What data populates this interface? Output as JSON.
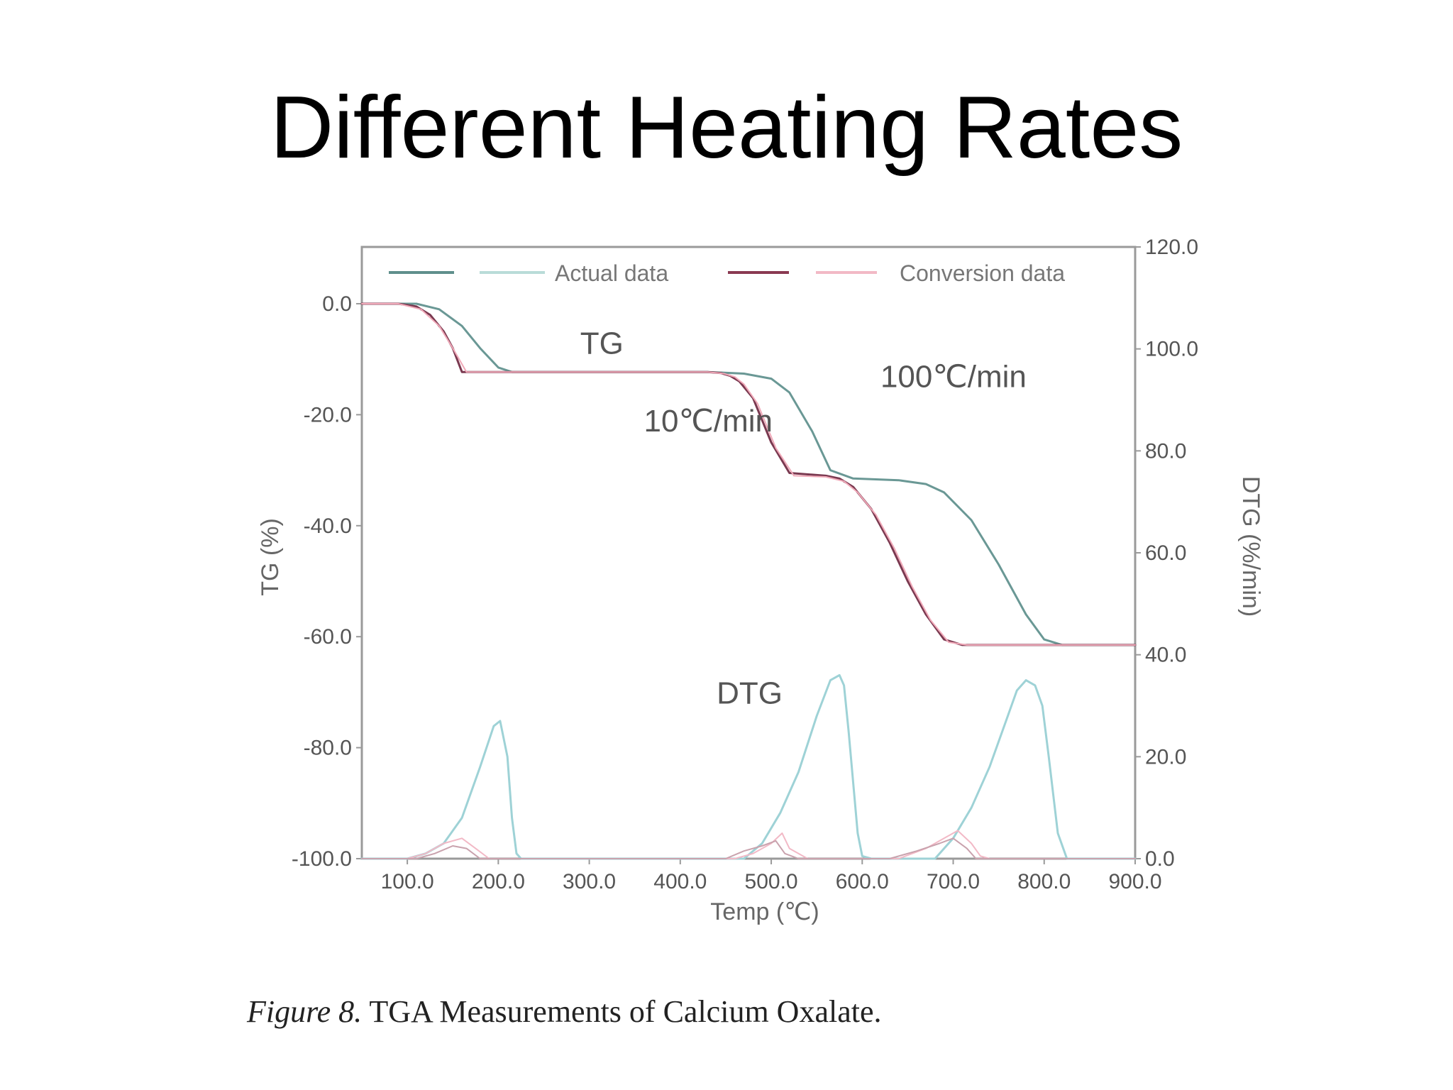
{
  "slide": {
    "title": "Different Heating Rates"
  },
  "caption": {
    "figure": "Figure 8.",
    "text": "TGA Measurements of Calcium Oxalate."
  },
  "chart_data": {
    "type": "line",
    "xlabel": "Temp (℃)",
    "ylabel_left": "TG (%)",
    "ylabel_right": "DTG (%/min)",
    "xlim": [
      50,
      900
    ],
    "ylim_left": [
      -100,
      10
    ],
    "ylim_right": [
      0,
      120
    ],
    "x_ticks": [
      100,
      200,
      300,
      400,
      500,
      600,
      700,
      800,
      900
    ],
    "x_tick_labels": [
      "100.0",
      "200.0",
      "300.0",
      "400.0",
      "500.0",
      "600.0",
      "700.0",
      "800.0",
      "900.0"
    ],
    "y_left_ticks": [
      0,
      -20,
      -40,
      -60,
      -80,
      -100
    ],
    "y_left_tick_labels": [
      "0.0",
      "-20.0",
      "-40.0",
      "-60.0",
      "-80.0",
      "-100.0"
    ],
    "y_right_ticks": [
      120,
      100,
      80,
      60,
      40,
      20,
      0
    ],
    "y_right_tick_labels": [
      "120.0",
      "100.0",
      "80.0",
      "60.0",
      "40.0",
      "20.0",
      "0.0"
    ],
    "grid": false,
    "legend": {
      "placement": "top",
      "entries": [
        {
          "label": "Actual data",
          "colors": [
            "#5f8f8c",
            "#b9dcd8"
          ]
        },
        {
          "label": "Conversion data",
          "colors": [
            "#8a3a52",
            "#f2b9c6"
          ]
        }
      ]
    },
    "annotations": [
      {
        "text": "TG",
        "x": 290,
        "y": -7
      },
      {
        "text": "100℃/min",
        "x": 620,
        "y": -13
      },
      {
        "text": "10℃/min",
        "x": 360,
        "y": -21
      },
      {
        "text": "DTG",
        "x": 440,
        "y": -70
      }
    ],
    "series": [
      {
        "axis": "left",
        "color": "#6a9895",
        "width": 3,
        "x": [
          50,
          110,
          135,
          160,
          180,
          200,
          215,
          430,
          470,
          500,
          520,
          545,
          565,
          590,
          640,
          670,
          690,
          720,
          750,
          780,
          800,
          820,
          900
        ],
        "y": [
          0,
          0,
          -1,
          -4,
          -8,
          -11.5,
          -12.3,
          -12.3,
          -12.6,
          -13.5,
          -16,
          -23,
          -30,
          -31.5,
          -31.8,
          -32.5,
          -34,
          -39,
          -47,
          -56,
          -60.5,
          -61.5,
          -61.5
        ]
      },
      {
        "axis": "left",
        "color": "#7a3950",
        "width": 3,
        "x": [
          50,
          90,
          110,
          125,
          140,
          150,
          160,
          430,
          445,
          455,
          465,
          480,
          500,
          520,
          560,
          575,
          590,
          610,
          630,
          650,
          670,
          690,
          710,
          900
        ],
        "y": [
          0,
          0,
          -0.5,
          -2,
          -5,
          -8,
          -12.3,
          -12.3,
          -12.5,
          -13,
          -14,
          -17,
          -25,
          -30.5,
          -31,
          -31.5,
          -33,
          -37,
          -43,
          -50,
          -56,
          -60.5,
          -61.5,
          -61.5
        ]
      },
      {
        "axis": "left",
        "color": "#f0a9b8",
        "width": 2,
        "x": [
          50,
          90,
          115,
          135,
          150,
          165,
          430,
          448,
          460,
          470,
          485,
          505,
          525,
          560,
          580,
          595,
          615,
          635,
          655,
          675,
          695,
          715,
          900
        ],
        "y": [
          0,
          0,
          -1,
          -4,
          -8,
          -12.3,
          -12.3,
          -12.6,
          -13.2,
          -14.5,
          -18,
          -26,
          -31,
          -31.2,
          -32,
          -34,
          -38,
          -44,
          -51,
          -57,
          -61,
          -61.5,
          -61.5
        ]
      },
      {
        "axis": "right",
        "color": "#9ed2d6",
        "width": 3,
        "x": [
          50,
          100,
          120,
          140,
          160,
          180,
          195,
          202,
          210,
          215,
          220,
          225,
          470,
          490,
          510,
          530,
          550,
          565,
          575,
          580,
          585,
          595,
          600,
          610,
          680,
          700,
          720,
          740,
          760,
          770,
          780,
          790,
          798,
          805,
          815,
          825,
          900
        ],
        "y": [
          0,
          0,
          1,
          3,
          8,
          18,
          26,
          27,
          20,
          8,
          1,
          0,
          0,
          3,
          9,
          17,
          28,
          35,
          36,
          34,
          25,
          5,
          0.5,
          0,
          0,
          4,
          10,
          18,
          28,
          33,
          35,
          34,
          30,
          20,
          5,
          0,
          0
        ]
      },
      {
        "axis": "right",
        "color": "#f2b9c6",
        "width": 2,
        "x": [
          50,
          100,
          120,
          140,
          160,
          175,
          190,
          460,
          480,
          500,
          512,
          520,
          540,
          640,
          670,
          690,
          705,
          720,
          730,
          740,
          900
        ],
        "y": [
          0,
          0,
          1,
          3,
          4,
          2,
          0,
          0,
          1,
          3,
          5,
          2,
          0,
          0,
          2,
          4,
          5.5,
          3,
          0.5,
          0,
          0
        ]
      },
      {
        "axis": "right",
        "color": "#c9a2ad",
        "width": 2,
        "x": [
          50,
          110,
          130,
          150,
          165,
          180,
          450,
          470,
          490,
          505,
          515,
          530,
          630,
          660,
          685,
          700,
          715,
          725,
          900
        ],
        "y": [
          0,
          0,
          1,
          2.5,
          2,
          0,
          0,
          1.5,
          2.5,
          3.5,
          1,
          0,
          0,
          1.5,
          3,
          4,
          2,
          0,
          0
        ]
      }
    ]
  }
}
